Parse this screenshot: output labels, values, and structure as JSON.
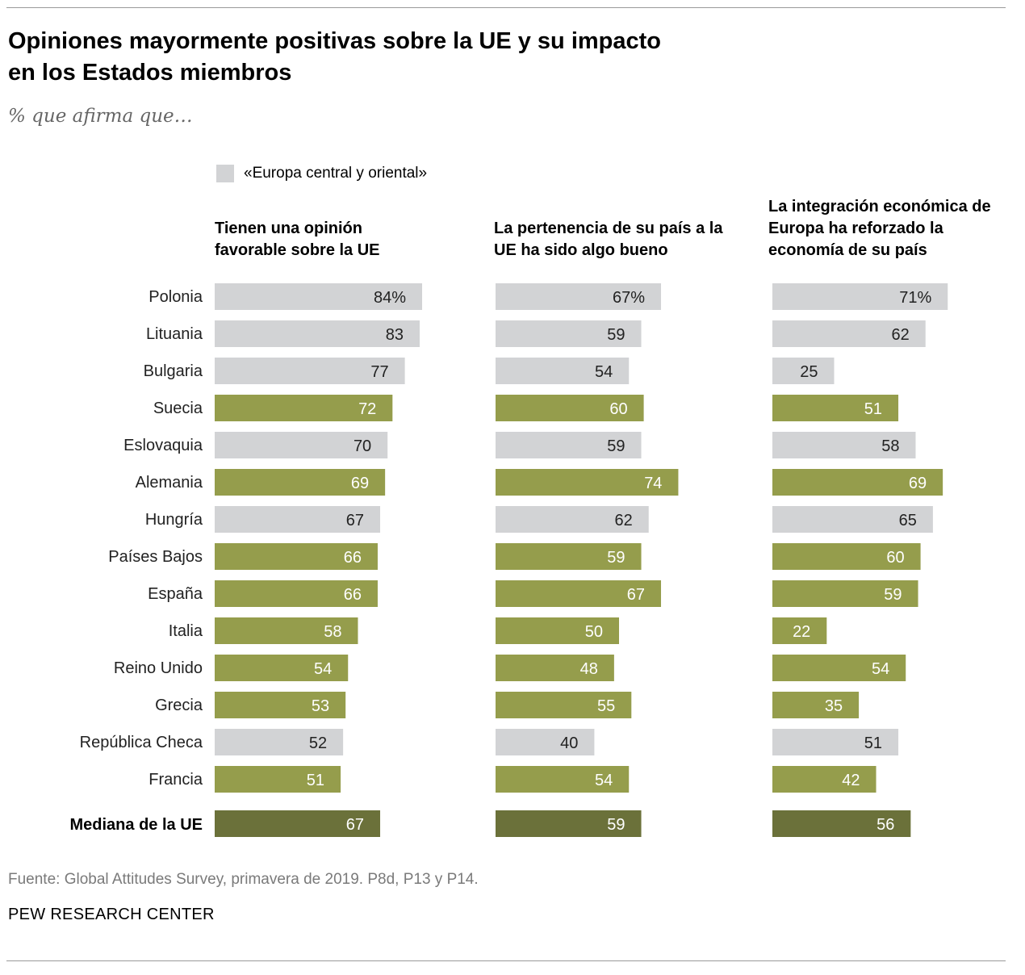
{
  "title": "Opiniones mayormente positivas sobre la UE y su impacto en los Estados miembros",
  "subtitle": "% que afirma que…",
  "legend": {
    "label": "«Europa central y oriental»"
  },
  "colors": {
    "cee": "#d2d3d5",
    "other": "#959d4c",
    "median": "#6b713a",
    "label_on_light": "#222222",
    "label_on_dark": "#ffffff"
  },
  "source": "Fuente: Global Attitudes Survey, primavera de 2019. P8d, P13 y P14.",
  "brand": "PEW RESEARCH CENTER",
  "chart_data": {
    "type": "bar",
    "orientation": "horizontal",
    "title": "Opiniones mayormente positivas sobre la UE y su impacto en los Estados miembros",
    "xlim": [
      0,
      100
    ],
    "categories": [
      "Polonia",
      "Lituania",
      "Bulgaria",
      "Suecia",
      "Eslovaquia",
      "Alemania",
      "Hungría",
      "Países Bajos",
      "España",
      "Italia",
      "Reino Unido",
      "Grecia",
      "República Checa",
      "Francia"
    ],
    "central_eastern": [
      true,
      true,
      true,
      false,
      true,
      false,
      true,
      false,
      false,
      false,
      false,
      false,
      true,
      false
    ],
    "median_label": "Mediana de la UE",
    "series": [
      {
        "name": "Tienen una opinión favorable sobre la UE",
        "values": [
          84,
          83,
          77,
          72,
          70,
          69,
          67,
          66,
          66,
          58,
          54,
          53,
          52,
          51
        ],
        "median": 67
      },
      {
        "name": "La pertenencia de su país a la UE ha sido algo bueno",
        "values": [
          67,
          59,
          54,
          60,
          59,
          74,
          62,
          59,
          67,
          50,
          48,
          55,
          40,
          54
        ],
        "median": 59
      },
      {
        "name": "La integración económica de Europa ha reforzado la economía de su país",
        "values": [
          71,
          62,
          25,
          51,
          58,
          69,
          65,
          60,
          59,
          22,
          54,
          35,
          51,
          42
        ],
        "median": 56
      }
    ],
    "first_row_suffix": "%"
  }
}
